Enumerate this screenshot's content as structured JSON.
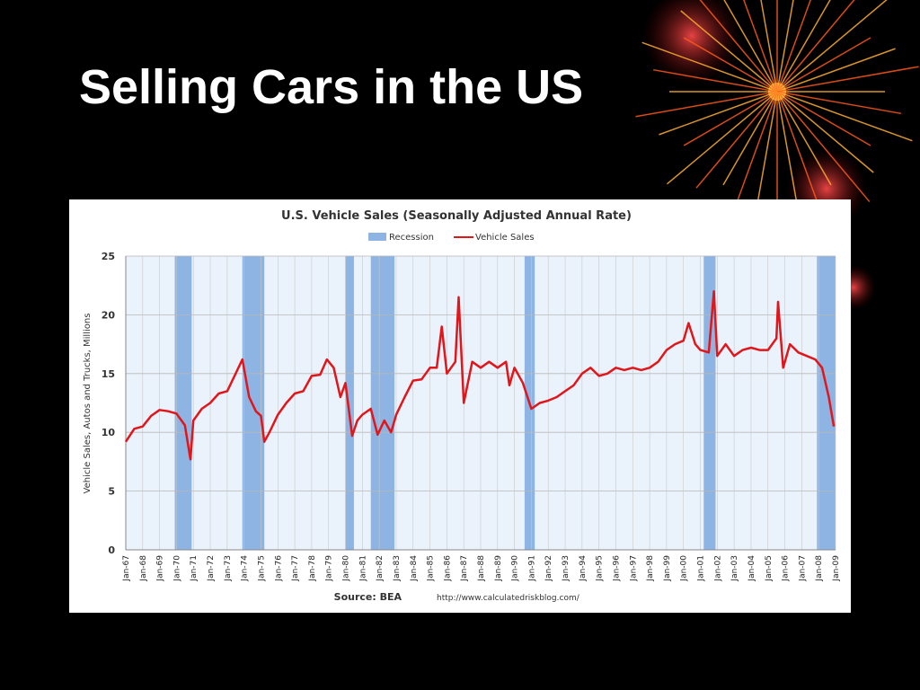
{
  "slide_title": "Selling Cars in the US",
  "chart_data": {
    "type": "line",
    "title": "U.S. Vehicle Sales (Seasonally Adjusted Annual Rate)",
    "y_label": "Vehicle Sales, Autos and Trucks, Millions",
    "source": "Source: BEA",
    "url": "http://www.calculatedriskblog.com/",
    "x": [
      1967.0,
      1967.5,
      1968.0,
      1968.5,
      1969.0,
      1969.5,
      1970.0,
      1970.5,
      1970.83,
      1971.0,
      1971.5,
      1972.0,
      1972.5,
      1973.0,
      1973.5,
      1973.9,
      1974.3,
      1974.7,
      1975.0,
      1975.2,
      1975.5,
      1976.0,
      1976.5,
      1977.0,
      1977.5,
      1978.0,
      1978.5,
      1978.9,
      1979.3,
      1979.7,
      1980.0,
      1980.4,
      1980.7,
      1981.0,
      1981.5,
      1981.9,
      1982.3,
      1982.7,
      1983.0,
      1983.5,
      1984.0,
      1984.5,
      1985.0,
      1985.4,
      1985.7,
      1986.0,
      1986.5,
      1986.7,
      1987.0,
      1987.5,
      1988.0,
      1988.5,
      1989.0,
      1989.5,
      1989.7,
      1990.0,
      1990.5,
      1991.0,
      1991.5,
      1992.0,
      1992.5,
      1993.0,
      1993.5,
      1994.0,
      1994.5,
      1995.0,
      1995.5,
      1996.0,
      1996.5,
      1997.0,
      1997.5,
      1998.0,
      1998.5,
      1999.0,
      1999.5,
      2000.0,
      2000.3,
      2000.7,
      2001.0,
      2001.5,
      2001.8,
      2002.0,
      2002.5,
      2003.0,
      2003.5,
      2004.0,
      2004.5,
      2005.0,
      2005.5,
      2005.6,
      2005.9,
      2006.3,
      2006.8,
      2007.3,
      2007.8,
      2008.2,
      2008.6,
      2008.9
    ],
    "series": [
      {
        "name": "Vehicle Sales",
        "color": "#e0161b",
        "values": [
          9.2,
          10.3,
          10.5,
          11.4,
          11.9,
          11.8,
          11.6,
          10.6,
          7.7,
          11.0,
          12.0,
          12.5,
          13.3,
          13.5,
          15.0,
          16.2,
          13.0,
          11.8,
          11.4,
          9.2,
          10.0,
          11.5,
          12.5,
          13.3,
          13.5,
          14.8,
          14.9,
          16.2,
          15.5,
          13.0,
          14.2,
          9.7,
          11.0,
          11.5,
          12.0,
          9.8,
          11.0,
          10.0,
          11.5,
          13.0,
          14.4,
          14.5,
          15.5,
          15.5,
          19.0,
          15.0,
          16.0,
          21.5,
          12.5,
          16.0,
          15.5,
          16.0,
          15.5,
          16.0,
          14.0,
          15.5,
          14.2,
          12.0,
          12.5,
          12.7,
          13.0,
          13.5,
          14.0,
          15.0,
          15.5,
          14.8,
          15.0,
          15.5,
          15.3,
          15.5,
          15.3,
          15.5,
          16.0,
          17.0,
          17.5,
          17.8,
          19.3,
          17.5,
          17.0,
          16.8,
          22.0,
          16.5,
          17.5,
          16.5,
          17.0,
          17.2,
          17.0,
          17.0,
          18.0,
          21.1,
          15.5,
          17.5,
          16.8,
          16.5,
          16.2,
          15.5,
          13.0,
          10.5
        ]
      }
    ],
    "bands": {
      "name": "Recession",
      "color": "#8db4e2",
      "ranges": [
        [
          1969.9,
          1970.9
        ],
        [
          1973.9,
          1975.2
        ],
        [
          1980.0,
          1980.5
        ],
        [
          1981.5,
          1982.9
        ],
        [
          1990.6,
          1991.2
        ],
        [
          2001.2,
          2001.9
        ],
        [
          2007.9,
          2009.0
        ]
      ]
    },
    "xlim": [
      1967,
      2009
    ],
    "ylim": [
      0,
      25
    ],
    "yticks": [
      0,
      5,
      10,
      15,
      20,
      25
    ],
    "xticks": [
      {
        "value": 1967,
        "label": "Jan-67"
      },
      {
        "value": 1968,
        "label": "Jan-68"
      },
      {
        "value": 1969,
        "label": "Jan-69"
      },
      {
        "value": 1970,
        "label": "Jan-70"
      },
      {
        "value": 1971,
        "label": "Jan-71"
      },
      {
        "value": 1972,
        "label": "Jan-72"
      },
      {
        "value": 1973,
        "label": "Jan-73"
      },
      {
        "value": 1974,
        "label": "Jan-74"
      },
      {
        "value": 1975,
        "label": "Jan-75"
      },
      {
        "value": 1976,
        "label": "Jan-76"
      },
      {
        "value": 1977,
        "label": "Jan-77"
      },
      {
        "value": 1978,
        "label": "Jan-78"
      },
      {
        "value": 1979,
        "label": "Jan-79"
      },
      {
        "value": 1980,
        "label": "Jan-80"
      },
      {
        "value": 1981,
        "label": "Jan-81"
      },
      {
        "value": 1982,
        "label": "Jan-82"
      },
      {
        "value": 1983,
        "label": "Jan-83"
      },
      {
        "value": 1984,
        "label": "Jan-84"
      },
      {
        "value": 1985,
        "label": "Jan-85"
      },
      {
        "value": 1986,
        "label": "Jan-86"
      },
      {
        "value": 1987,
        "label": "Jan-87"
      },
      {
        "value": 1988,
        "label": "Jan-88"
      },
      {
        "value": 1989,
        "label": "Jan-89"
      },
      {
        "value": 1990,
        "label": "Jan-90"
      },
      {
        "value": 1991,
        "label": "Jan-91"
      },
      {
        "value": 1992,
        "label": "Jan-92"
      },
      {
        "value": 1993,
        "label": "Jan-93"
      },
      {
        "value": 1994,
        "label": "Jan-94"
      },
      {
        "value": 1995,
        "label": "Jan-95"
      },
      {
        "value": 1996,
        "label": "Jan-96"
      },
      {
        "value": 1997,
        "label": "Jan-97"
      },
      {
        "value": 1998,
        "label": "Jan-98"
      },
      {
        "value": 1999,
        "label": "Jan-99"
      },
      {
        "value": 2000,
        "label": "Jan-00"
      },
      {
        "value": 2001,
        "label": "Jan-01"
      },
      {
        "value": 2002,
        "label": "Jan-02"
      },
      {
        "value": 2003,
        "label": "Jan-03"
      },
      {
        "value": 2004,
        "label": "Jan-04"
      },
      {
        "value": 2005,
        "label": "Jan-05"
      },
      {
        "value": 2006,
        "label": "Jan-06"
      },
      {
        "value": 2007,
        "label": "Jan-07"
      },
      {
        "value": 2008,
        "label": "Jan-08"
      },
      {
        "value": 2009,
        "label": "Jan-09"
      }
    ],
    "grid": true
  }
}
